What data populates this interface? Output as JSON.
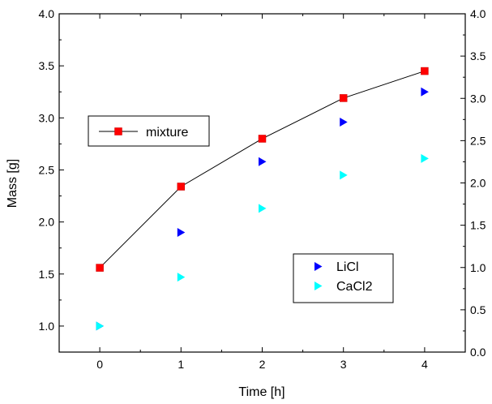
{
  "chart_data": {
    "type": "line",
    "xlabel": "Time [h]",
    "ylabel": "Mass [g]",
    "x": [
      0,
      1,
      2,
      3,
      4
    ],
    "xlim": [
      -0.5,
      4.5
    ],
    "x_ticks": [
      "0",
      "1",
      "2",
      "3",
      "4"
    ],
    "left_axis": {
      "ylim": [
        0.75,
        4.0
      ],
      "ticks": [
        "1.0",
        "1.5",
        "2.0",
        "2.5",
        "3.0",
        "3.5",
        "4.0"
      ]
    },
    "right_axis": {
      "ylim": [
        0.0,
        4.0
      ],
      "ticks": [
        "0.0",
        "0.5",
        "1.0",
        "1.5",
        "2.0",
        "2.5",
        "3.0",
        "3.5",
        "4.0"
      ]
    },
    "series": [
      {
        "name": "mixture",
        "axis": "left",
        "marker": "square",
        "line": true,
        "color": "#ff0000",
        "values": [
          1.56,
          2.34,
          2.8,
          3.19,
          3.45
        ]
      },
      {
        "name": "LiCl",
        "axis": "left",
        "marker": "triangle-right",
        "line": false,
        "color": "#0000ff",
        "values": [
          1.0,
          1.9,
          2.58,
          2.96,
          3.25
        ]
      },
      {
        "name": "CaCl2",
        "axis": "left",
        "marker": "triangle-right",
        "line": false,
        "color": "#00ffff",
        "values": [
          1.0,
          1.47,
          2.13,
          2.45,
          2.61
        ]
      }
    ],
    "legends": [
      {
        "position": "upper-left",
        "entries": [
          "mixture"
        ]
      },
      {
        "position": "lower-right",
        "entries": [
          "LiCl",
          "CaCl2"
        ]
      }
    ],
    "grid": false
  }
}
